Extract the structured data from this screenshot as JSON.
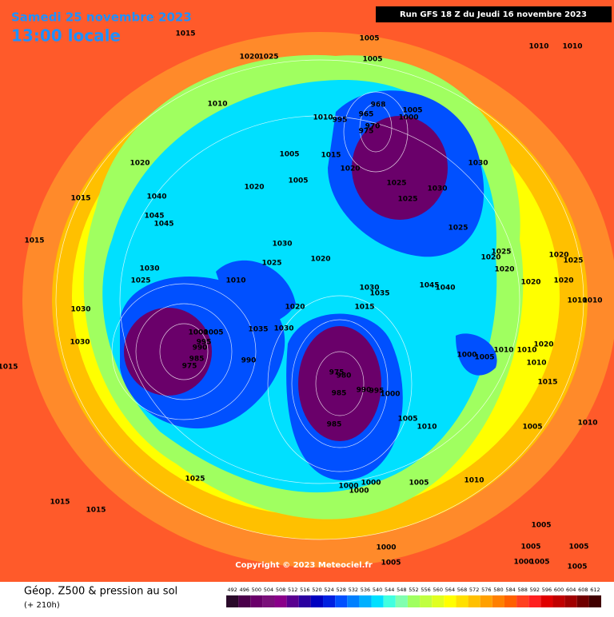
{
  "header": {
    "date": "Samedi 25 novembre 2023",
    "time": "13:00 locale",
    "run": "Run GFS 18 Z du Jeudi 16 novembre 2023"
  },
  "footer": {
    "copyright": "Copyright © 2023 Meteociel.fr",
    "product": "Géop. Z500 & pression au sol",
    "lead": "(+ 210h)"
  },
  "legend": {
    "ticks": [
      492,
      496,
      500,
      504,
      508,
      512,
      516,
      520,
      524,
      528,
      532,
      536,
      540,
      544,
      548,
      552,
      556,
      560,
      564,
      568,
      572,
      576,
      580,
      584,
      588,
      592,
      596,
      600,
      604,
      608,
      612
    ],
    "colors": [
      "#2a0a2a",
      "#4a004a",
      "#6a006a",
      "#7a107a",
      "#8a008a",
      "#5a0090",
      "#2a00a0",
      "#0000c0",
      "#0020e0",
      "#0050ff",
      "#0080ff",
      "#00b0ff",
      "#00e0ff",
      "#40ffe0",
      "#80ffb0",
      "#a0ff60",
      "#c0ff40",
      "#e0ff20",
      "#ffff00",
      "#ffe000",
      "#ffc000",
      "#ffa000",
      "#ff8000",
      "#ff6000",
      "#ff4020",
      "#ff2020",
      "#e00000",
      "#c00000",
      "#a00000",
      "#700000",
      "#400000"
    ]
  },
  "pressure_labels": [
    "1015",
    "1005",
    "1010",
    "1010",
    "1005",
    "1020",
    "1025",
    "1010",
    "968",
    "965",
    "1005",
    "1000",
    "1010",
    "995",
    "970",
    "975",
    "1005",
    "1015",
    "1030",
    "1020",
    "1020",
    "1005",
    "1025",
    "1030",
    "1025",
    "1020",
    "1040",
    "1015",
    "1045",
    "1045",
    "1025",
    "1015",
    "1030",
    "1025",
    "1020",
    "1020",
    "1025",
    "1020",
    "1025",
    "1030",
    "1020",
    "1025",
    "1010",
    "1045",
    "1040",
    "1030",
    "1035",
    "1020",
    "1020",
    "1010",
    "1010",
    "1020",
    "1015",
    "1030",
    "1005",
    "1035",
    "1030",
    "1030",
    "1000",
    "995",
    "990",
    "985",
    "975",
    "1010",
    "1010",
    "1000",
    "1005",
    "1020",
    "1015",
    "990",
    "975",
    "980",
    "1010",
    "990",
    "995",
    "985",
    "1015",
    "1000",
    "1005",
    "985",
    "1010",
    "1010",
    "1005",
    "1025",
    "1000",
    "1000",
    "1005",
    "1010",
    "1000",
    "1015",
    "1015",
    "1005",
    "1005",
    "1000",
    "1005",
    "1000",
    "1005",
    "1005",
    "1005"
  ]
}
